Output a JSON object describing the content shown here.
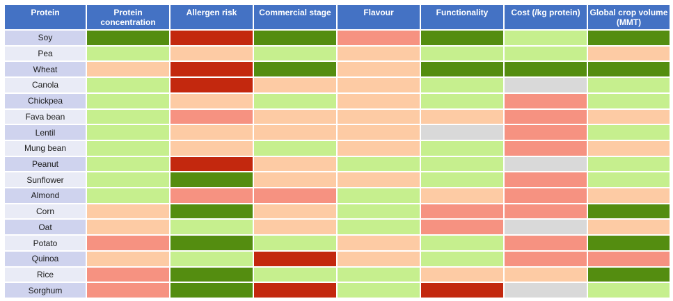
{
  "colors": {
    "header_bg": "#4472c4",
    "row_label_odd": "#cfd3ee",
    "row_label_even": "#e9ebf6",
    "palette": {
      "dark_green": "#548d10",
      "light_green": "#c6ef8e",
      "peach": "#fdcba4",
      "salmon": "#f69281",
      "dark_red": "#c3280e",
      "grey": "#d9d9d9"
    }
  },
  "chart_data": {
    "type": "heatmap",
    "columns": [
      "Protein",
      "Protein concentration",
      "Allergen risk",
      "Commercial stage",
      "Flavour",
      "Functionality",
      "Cost (/kg protein)",
      "Global crop volume (MMT)"
    ],
    "rows": [
      {
        "label": "Soy",
        "cells": [
          "dark_green",
          "dark_red",
          "dark_green",
          "salmon",
          "dark_green",
          "light_green",
          "dark_green"
        ]
      },
      {
        "label": "Pea",
        "cells": [
          "light_green",
          "peach",
          "light_green",
          "peach",
          "light_green",
          "light_green",
          "peach"
        ]
      },
      {
        "label": "Wheat",
        "cells": [
          "peach",
          "dark_red",
          "dark_green",
          "peach",
          "dark_green",
          "dark_green",
          "dark_green"
        ]
      },
      {
        "label": "Canola",
        "cells": [
          "light_green",
          "dark_red",
          "peach",
          "peach",
          "light_green",
          "grey",
          "light_green"
        ]
      },
      {
        "label": "Chickpea",
        "cells": [
          "light_green",
          "peach",
          "light_green",
          "peach",
          "light_green",
          "salmon",
          "light_green"
        ]
      },
      {
        "label": "Fava bean",
        "cells": [
          "light_green",
          "salmon",
          "peach",
          "peach",
          "peach",
          "salmon",
          "peach"
        ]
      },
      {
        "label": "Lentil",
        "cells": [
          "light_green",
          "peach",
          "peach",
          "peach",
          "grey",
          "salmon",
          "light_green"
        ]
      },
      {
        "label": "Mung bean",
        "cells": [
          "light_green",
          "peach",
          "light_green",
          "peach",
          "light_green",
          "salmon",
          "peach"
        ]
      },
      {
        "label": "Peanut",
        "cells": [
          "light_green",
          "dark_red",
          "peach",
          "light_green",
          "light_green",
          "grey",
          "light_green"
        ]
      },
      {
        "label": "Sunflower",
        "cells": [
          "light_green",
          "dark_green",
          "peach",
          "peach",
          "light_green",
          "salmon",
          "light_green"
        ]
      },
      {
        "label": "Almond",
        "cells": [
          "light_green",
          "salmon",
          "salmon",
          "light_green",
          "peach",
          "salmon",
          "peach"
        ]
      },
      {
        "label": "Corn",
        "cells": [
          "peach",
          "dark_green",
          "peach",
          "light_green",
          "salmon",
          "salmon",
          "dark_green"
        ]
      },
      {
        "label": "Oat",
        "cells": [
          "peach",
          "light_green",
          "peach",
          "light_green",
          "salmon",
          "grey",
          "peach"
        ]
      },
      {
        "label": "Potato",
        "cells": [
          "salmon",
          "dark_green",
          "light_green",
          "peach",
          "light_green",
          "salmon",
          "dark_green"
        ]
      },
      {
        "label": "Quinoa",
        "cells": [
          "peach",
          "light_green",
          "dark_red",
          "peach",
          "light_green",
          "salmon",
          "salmon"
        ]
      },
      {
        "label": "Rice",
        "cells": [
          "salmon",
          "dark_green",
          "light_green",
          "light_green",
          "peach",
          "peach",
          "dark_green"
        ]
      },
      {
        "label": "Sorghum",
        "cells": [
          "salmon",
          "dark_green",
          "dark_red",
          "light_green",
          "dark_red",
          "grey",
          "light_green"
        ]
      }
    ]
  }
}
